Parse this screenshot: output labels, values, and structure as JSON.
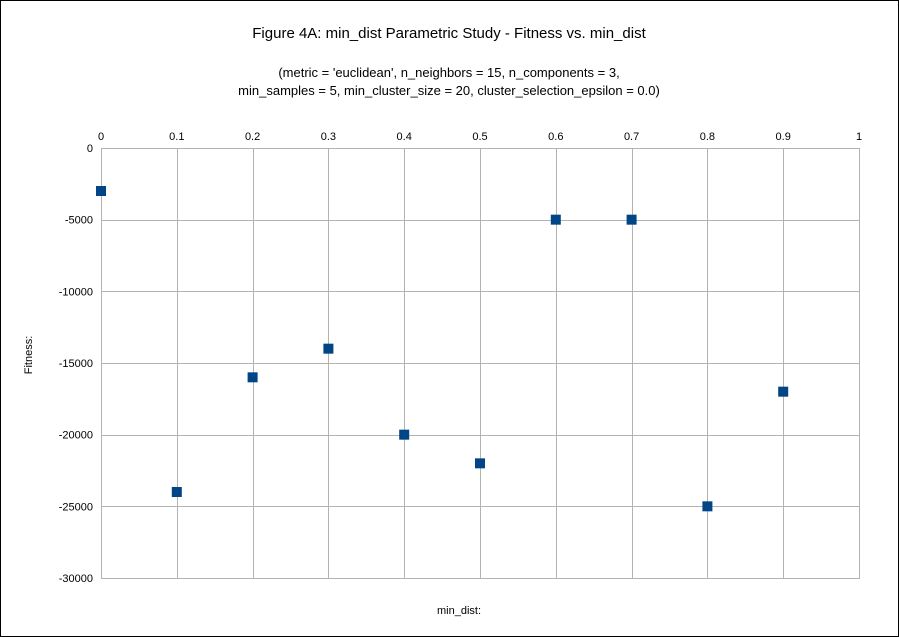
{
  "chart_data": {
    "type": "scatter",
    "title": "Figure 4A: min_dist Parametric Study - Fitness vs. min_dist",
    "subtitle_lines": [
      "(metric = 'euclidean', n_neighbors = 15, n_components = 3,",
      "min_samples = 5, min_cluster_size = 20, cluster_selection_epsilon = 0.0)"
    ],
    "xlabel": "min_dist:",
    "ylabel": "Fitness:",
    "x_axis_position": "top",
    "xlim": [
      0,
      1
    ],
    "ylim": [
      -30000,
      0
    ],
    "x_ticks": [
      0,
      0.1,
      0.2,
      0.3,
      0.4,
      0.5,
      0.6,
      0.7,
      0.8,
      0.9,
      1
    ],
    "x_tick_labels": [
      "0",
      "0.1",
      "0.2",
      "0.3",
      "0.4",
      "0.5",
      "0.6",
      "0.7",
      "0.8",
      "0.9",
      "1"
    ],
    "y_ticks": [
      0,
      -5000,
      -10000,
      -15000,
      -20000,
      -25000,
      -30000
    ],
    "y_tick_labels": [
      "0",
      "-5000",
      "-10000",
      "-15000",
      "-20000",
      "-25000",
      "-30000"
    ],
    "grid": true,
    "marker": "square",
    "series": [
      {
        "color": "#004586",
        "points": [
          {
            "x": 0,
            "y": -3000
          },
          {
            "x": 0.1,
            "y": -24000
          },
          {
            "x": 0.2,
            "y": -16000
          },
          {
            "x": 0.3,
            "y": -14000
          },
          {
            "x": 0.4,
            "y": -20000
          },
          {
            "x": 0.5,
            "y": -22000
          },
          {
            "x": 0.6,
            "y": -5000
          },
          {
            "x": 0.7,
            "y": -5000
          },
          {
            "x": 0.8,
            "y": -25000
          },
          {
            "x": 0.9,
            "y": -17000
          }
        ]
      }
    ],
    "colors": {
      "grid": "#b3b3b3",
      "frame": "#b3b3b3"
    }
  }
}
